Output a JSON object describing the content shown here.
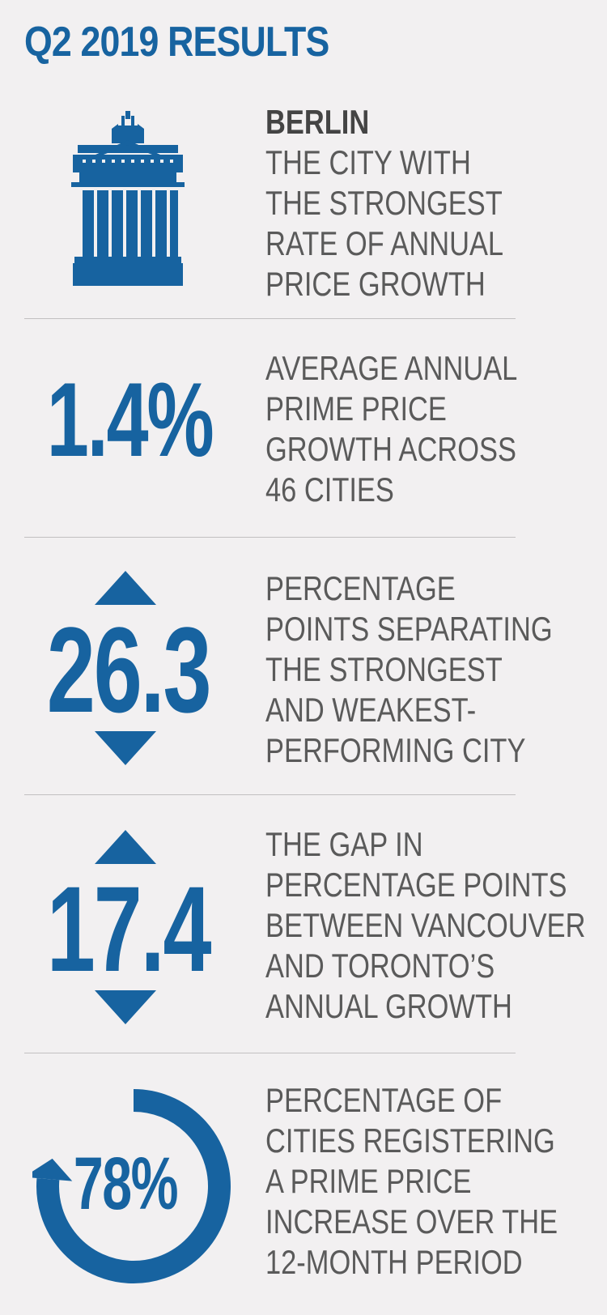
{
  "title": "Q2 2019 RESULTS",
  "colors": {
    "accent": "#1763a0",
    "text": "#5a5a5a",
    "background": "#f2f0f1"
  },
  "sections": [
    {
      "icon": "brandenburg-gate-icon",
      "heading": "BERLIN",
      "lines": [
        "THE CITY WITH",
        "THE STRONGEST",
        "RATE OF ANNUAL",
        "PRICE GROWTH"
      ]
    },
    {
      "stat": "1.4%",
      "lines": [
        "AVERAGE ANNUAL",
        "PRIME PRICE",
        "GROWTH ACROSS",
        "46 CITIES"
      ]
    },
    {
      "stat": "26.3",
      "icon": "up-down-arrows-icon",
      "lines": [
        "PERCENTAGE",
        "POINTS SEPARATING",
        "THE STRONGEST",
        "AND WEAKEST-",
        "PERFORMING CITY"
      ]
    },
    {
      "stat": "17.4",
      "icon": "up-down-arrows-icon",
      "lines": [
        "THE GAP IN",
        "PERCENTAGE POINTS",
        "BETWEEN VANCOUVER",
        "AND TORONTO’S",
        "ANNUAL GROWTH"
      ]
    },
    {
      "stat": "78%",
      "icon": "circular-arrow-icon",
      "value_fraction": 0.78,
      "lines": [
        "PERCENTAGE OF",
        "CITIES REGISTERING",
        "A PRIME PRICE",
        "INCREASE OVER THE",
        "12-MONTH PERIOD"
      ]
    }
  ]
}
